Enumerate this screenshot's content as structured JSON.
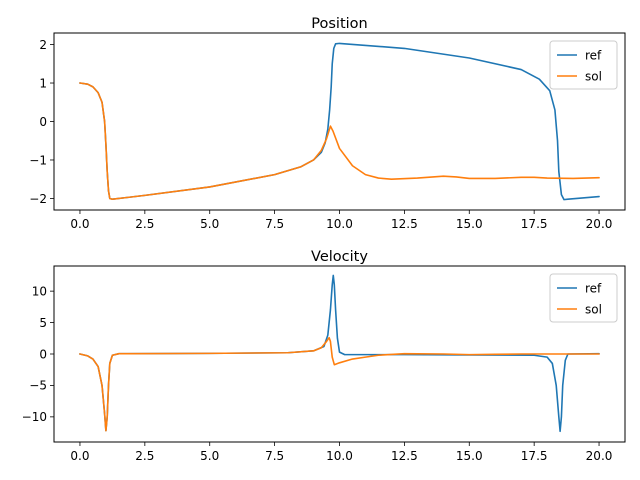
{
  "colors": {
    "ref": "#1f77b4",
    "sol": "#ff7f0e"
  },
  "chart_data": [
    {
      "type": "line",
      "title": "Position",
      "xlim": [
        -1.0,
        21.0
      ],
      "ylim": [
        -2.3,
        2.3
      ],
      "xticks": [
        0.0,
        2.5,
        5.0,
        7.5,
        10.0,
        12.5,
        15.0,
        17.5,
        20.0
      ],
      "xtick_labels": [
        "0.0",
        "2.5",
        "5.0",
        "7.5",
        "10.0",
        "12.5",
        "15.0",
        "17.5",
        "20.0"
      ],
      "yticks": [
        -2,
        -1,
        0,
        1,
        2
      ],
      "ytick_labels": [
        "−2",
        "−1",
        "0",
        "1",
        "2"
      ],
      "legend": "top-right",
      "series": [
        {
          "name": "ref",
          "color": "#1f77b4",
          "points": [
            [
              0,
              1.0
            ],
            [
              0.3,
              0.97
            ],
            [
              0.5,
              0.9
            ],
            [
              0.7,
              0.75
            ],
            [
              0.85,
              0.5
            ],
            [
              0.95,
              0.0
            ],
            [
              1.0,
              -0.6
            ],
            [
              1.05,
              -1.3
            ],
            [
              1.1,
              -1.8
            ],
            [
              1.15,
              -2.0
            ],
            [
              1.25,
              -2.02
            ],
            [
              2.5,
              -1.92
            ],
            [
              5.0,
              -1.7
            ],
            [
              7.5,
              -1.38
            ],
            [
              8.5,
              -1.18
            ],
            [
              9.0,
              -1.0
            ],
            [
              9.3,
              -0.8
            ],
            [
              9.45,
              -0.55
            ],
            [
              9.55,
              -0.2
            ],
            [
              9.62,
              0.3
            ],
            [
              9.68,
              0.9
            ],
            [
              9.72,
              1.5
            ],
            [
              9.78,
              1.9
            ],
            [
              9.85,
              2.02
            ],
            [
              10.0,
              2.03
            ],
            [
              12.5,
              1.9
            ],
            [
              15.0,
              1.65
            ],
            [
              17.0,
              1.35
            ],
            [
              17.7,
              1.1
            ],
            [
              18.1,
              0.8
            ],
            [
              18.3,
              0.3
            ],
            [
              18.4,
              -0.5
            ],
            [
              18.45,
              -1.3
            ],
            [
              18.55,
              -1.9
            ],
            [
              18.65,
              -2.03
            ],
            [
              18.8,
              -2.02
            ],
            [
              20.0,
              -1.95
            ]
          ]
        },
        {
          "name": "sol",
          "color": "#ff7f0e",
          "points": [
            [
              0,
              1.0
            ],
            [
              0.3,
              0.97
            ],
            [
              0.5,
              0.9
            ],
            [
              0.7,
              0.75
            ],
            [
              0.85,
              0.5
            ],
            [
              0.95,
              0.0
            ],
            [
              1.0,
              -0.6
            ],
            [
              1.05,
              -1.3
            ],
            [
              1.1,
              -1.8
            ],
            [
              1.15,
              -2.0
            ],
            [
              1.25,
              -2.02
            ],
            [
              2.5,
              -1.92
            ],
            [
              5.0,
              -1.7
            ],
            [
              7.5,
              -1.38
            ],
            [
              8.5,
              -1.18
            ],
            [
              9.0,
              -1.0
            ],
            [
              9.3,
              -0.75
            ],
            [
              9.5,
              -0.45
            ],
            [
              9.65,
              -0.12
            ],
            [
              9.75,
              -0.25
            ],
            [
              10.0,
              -0.7
            ],
            [
              10.5,
              -1.15
            ],
            [
              11.0,
              -1.38
            ],
            [
              11.5,
              -1.47
            ],
            [
              12.0,
              -1.5
            ],
            [
              13.0,
              -1.47
            ],
            [
              14.0,
              -1.42
            ],
            [
              14.5,
              -1.44
            ],
            [
              15.0,
              -1.48
            ],
            [
              16.0,
              -1.48
            ],
            [
              17.0,
              -1.45
            ],
            [
              17.5,
              -1.45
            ],
            [
              18.0,
              -1.47
            ],
            [
              19.0,
              -1.48
            ],
            [
              20.0,
              -1.46
            ]
          ]
        }
      ]
    },
    {
      "type": "line",
      "title": "Velocity",
      "xlim": [
        -1.0,
        21.0
      ],
      "ylim": [
        -14.0,
        14.0
      ],
      "xticks": [
        0.0,
        2.5,
        5.0,
        7.5,
        10.0,
        12.5,
        15.0,
        17.5,
        20.0
      ],
      "xtick_labels": [
        "0.0",
        "2.5",
        "5.0",
        "7.5",
        "10.0",
        "12.5",
        "15.0",
        "17.5",
        "20.0"
      ],
      "yticks": [
        -10,
        -5,
        0,
        5,
        10
      ],
      "ytick_labels": [
        "−10",
        "−5",
        "0",
        "5",
        "10"
      ],
      "legend": "top-right",
      "series": [
        {
          "name": "ref",
          "color": "#1f77b4",
          "points": [
            [
              0,
              0.0
            ],
            [
              0.3,
              -0.3
            ],
            [
              0.5,
              -0.8
            ],
            [
              0.7,
              -2.0
            ],
            [
              0.85,
              -5.0
            ],
            [
              0.95,
              -9.5
            ],
            [
              1.0,
              -12.2
            ],
            [
              1.05,
              -10.0
            ],
            [
              1.1,
              -5.0
            ],
            [
              1.15,
              -1.5
            ],
            [
              1.25,
              -0.2
            ],
            [
              1.5,
              0.05
            ],
            [
              5.0,
              0.1
            ],
            [
              8.0,
              0.2
            ],
            [
              9.0,
              0.5
            ],
            [
              9.4,
              1.2
            ],
            [
              9.55,
              3.0
            ],
            [
              9.65,
              7.0
            ],
            [
              9.72,
              11.0
            ],
            [
              9.76,
              12.5
            ],
            [
              9.8,
              11.0
            ],
            [
              9.85,
              7.0
            ],
            [
              9.92,
              2.5
            ],
            [
              10.0,
              0.3
            ],
            [
              10.2,
              -0.1
            ],
            [
              12.5,
              -0.1
            ],
            [
              15.0,
              -0.15
            ],
            [
              17.5,
              -0.2
            ],
            [
              18.0,
              -0.5
            ],
            [
              18.2,
              -1.5
            ],
            [
              18.35,
              -5.0
            ],
            [
              18.45,
              -10.0
            ],
            [
              18.5,
              -12.3
            ],
            [
              18.55,
              -10.0
            ],
            [
              18.6,
              -5.0
            ],
            [
              18.7,
              -1.0
            ],
            [
              18.8,
              0.0
            ],
            [
              20.0,
              0.05
            ]
          ]
        },
        {
          "name": "sol",
          "color": "#ff7f0e",
          "points": [
            [
              0,
              0.0
            ],
            [
              0.3,
              -0.3
            ],
            [
              0.5,
              -0.8
            ],
            [
              0.7,
              -2.0
            ],
            [
              0.85,
              -5.0
            ],
            [
              0.95,
              -9.5
            ],
            [
              1.0,
              -12.2
            ],
            [
              1.05,
              -10.0
            ],
            [
              1.1,
              -5.0
            ],
            [
              1.15,
              -1.5
            ],
            [
              1.25,
              -0.2
            ],
            [
              1.5,
              0.05
            ],
            [
              5.0,
              0.1
            ],
            [
              8.0,
              0.2
            ],
            [
              9.0,
              0.5
            ],
            [
              9.3,
              1.0
            ],
            [
              9.5,
              2.0
            ],
            [
              9.6,
              2.6
            ],
            [
              9.65,
              2.0
            ],
            [
              9.72,
              -0.5
            ],
            [
              9.8,
              -1.7
            ],
            [
              10.0,
              -1.4
            ],
            [
              10.5,
              -0.8
            ],
            [
              11.0,
              -0.5
            ],
            [
              11.5,
              -0.2
            ],
            [
              12.5,
              0.05
            ],
            [
              14.0,
              0.0
            ],
            [
              15.0,
              -0.1
            ],
            [
              16.0,
              -0.05
            ],
            [
              17.0,
              0.0
            ],
            [
              18.0,
              0.0
            ],
            [
              20.0,
              0.0
            ]
          ]
        }
      ]
    }
  ]
}
